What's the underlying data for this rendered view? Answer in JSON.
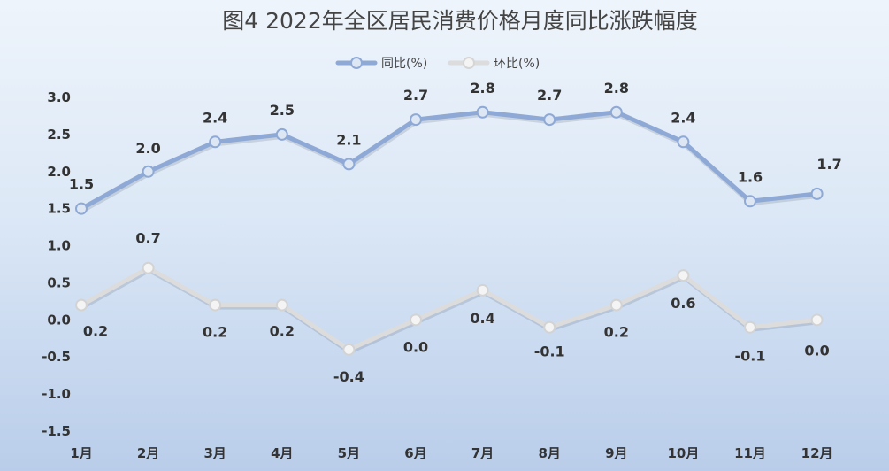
{
  "chart_data": {
    "type": "line",
    "title": "图4  2022年全区居民消费价格月度同比涨跌幅度",
    "categories": [
      "1月",
      "2月",
      "3月",
      "4月",
      "5月",
      "6月",
      "7月",
      "8月",
      "9月",
      "10月",
      "11月",
      "12月"
    ],
    "ylim": [
      -1.5,
      3.0
    ],
    "yticks": [
      "3.0",
      "2.5",
      "2.0",
      "1.5",
      "1.0",
      "0.5",
      "0.0",
      "-0.5",
      "-1.0",
      "-1.5"
    ],
    "grid": false,
    "legend_position": "top-center",
    "series": [
      {
        "name": "同比(%)",
        "color": "#8fa9d6",
        "values": [
          1.5,
          2.0,
          2.4,
          2.5,
          2.1,
          2.7,
          2.8,
          2.7,
          2.8,
          2.4,
          1.6,
          1.7
        ],
        "labels": [
          "1.5",
          "2.0",
          "2.4",
          "2.5",
          "2.1",
          "2.7",
          "2.8",
          "2.7",
          "2.8",
          "2.4",
          "1.6",
          "1.7"
        ]
      },
      {
        "name": "环比(%)",
        "color": "#dcdcdc",
        "values": [
          0.2,
          0.7,
          0.2,
          0.2,
          -0.4,
          0.0,
          0.4,
          -0.1,
          0.2,
          0.6,
          -0.1,
          0.0
        ],
        "labels": [
          "0.2",
          "0.7",
          "0.2",
          "0.2",
          "-0.4",
          "0.0",
          "0.4",
          "-0.1",
          "0.2",
          "0.6",
          "-0.1",
          "0.0"
        ]
      }
    ]
  }
}
